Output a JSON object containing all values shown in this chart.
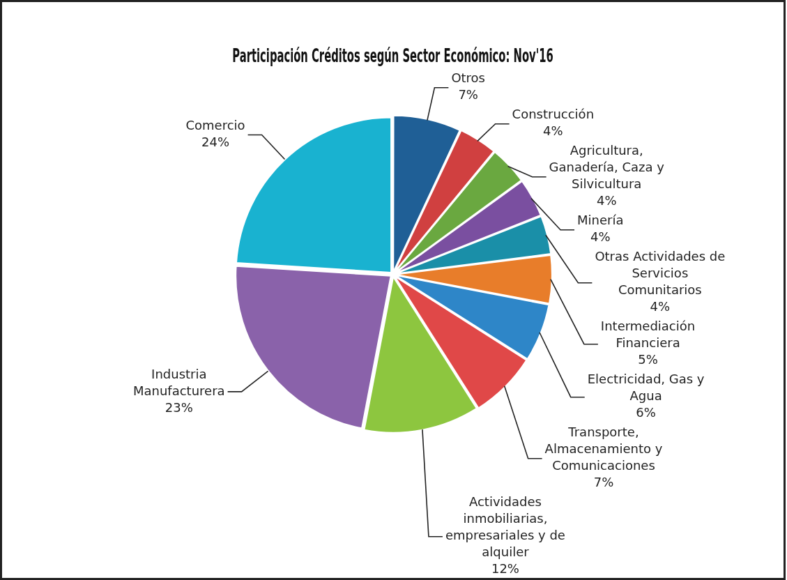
{
  "chart_data": {
    "type": "pie",
    "title": "Participación Créditos según Sector Económico: Nov'16",
    "categories": [
      "Otros",
      "Construcción",
      "Agricultura, Ganadería, Caza y Silvicultura",
      "Minería",
      "Otras Actividades de Servicios Comunitarios",
      "Intermediación Financiera",
      "Electricidad, Gas y Agua",
      "Transporte, Almacenamiento y Comunicaciones",
      "Actividades inmobiliarias, empresariales y de alquiler",
      "Industria Manufacturera",
      "Comercio"
    ],
    "values": [
      7,
      4,
      4,
      4,
      4,
      5,
      6,
      7,
      12,
      23,
      24
    ],
    "colors": [
      "#1f5f96",
      "#d04040",
      "#6aa840",
      "#7a4fa0",
      "#1a8fa8",
      "#e87d2a",
      "#2e86c8",
      "#e04848",
      "#8dc63f",
      "#8a62aa",
      "#19b2d0"
    ],
    "value_labels": [
      "7%",
      "4%",
      "4%",
      "4%",
      "4%",
      "5%",
      "6%",
      "7%",
      "12%",
      "23%",
      "24%"
    ]
  }
}
